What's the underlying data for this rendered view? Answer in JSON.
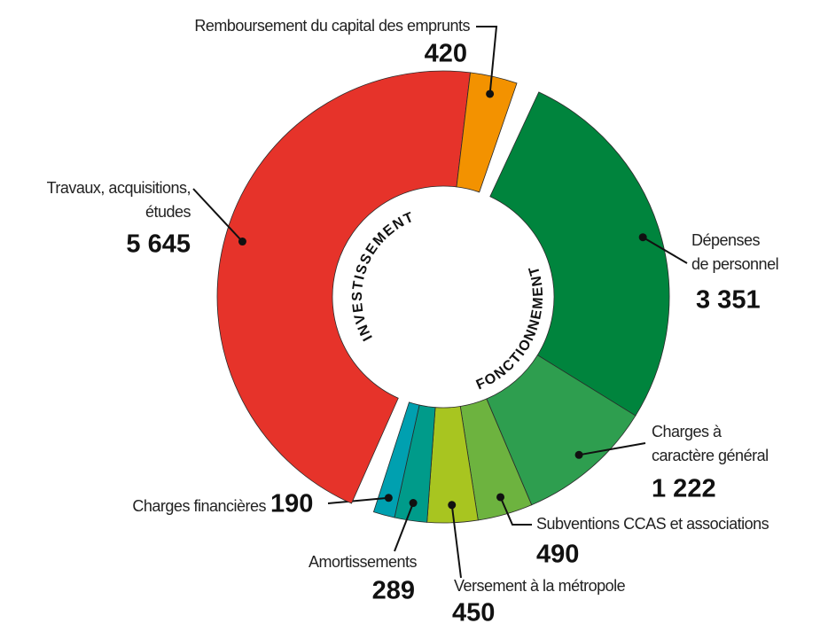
{
  "chart_data": {
    "type": "donut",
    "series": [
      {
        "name": "FONCTIONNEMENT",
        "categories": [
          "Dépenses\nde personnel",
          "Charges à\ncaractère général",
          "Subventions CCAS et associations",
          "Versement à la métropole",
          "Amortissements",
          "Charges financières"
        ],
        "values": [
          3351,
          1222,
          490,
          450,
          289,
          190
        ],
        "value_labels": [
          "3 351",
          "1 222",
          "490",
          "450",
          "289",
          "190"
        ],
        "colors": [
          "#00843d",
          "#2e9e4f",
          "#6db33f",
          "#a8c520",
          "#009b8a",
          "#00a0b0"
        ]
      },
      {
        "name": "INVESTISSEMENT",
        "categories": [
          "Travaux, acquisitions,\nétudes",
          "Remboursement du capital des emprunts"
        ],
        "values": [
          5645,
          420
        ],
        "value_labels": [
          "5 645",
          "420"
        ],
        "colors": [
          "#e6332a",
          "#f39200"
        ]
      }
    ]
  }
}
